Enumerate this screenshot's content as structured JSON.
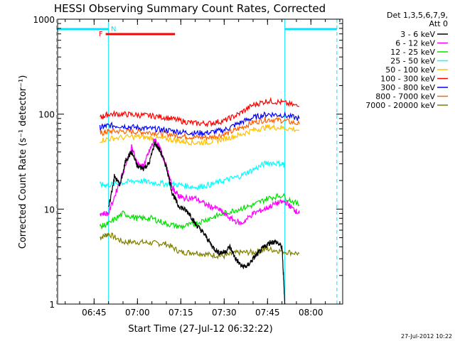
{
  "chart_data": {
    "type": "line",
    "title": "HESSI Observing Summary Count Rates, Corrected",
    "xlabel": "Start Time (27-Jul-12 06:32:22)",
    "ylabel": "Corrected Count Rate (s⁻¹ detector⁻¹)",
    "yscale": "log",
    "ylim": [
      1,
      1000
    ],
    "xlim": [
      "06:32:22",
      "08:11:00"
    ],
    "x_ticks": [
      "06:45",
      "07:00",
      "07:15",
      "07:30",
      "07:45",
      "08:00"
    ],
    "y_ticks": [
      "1",
      "10",
      "100",
      "1000"
    ],
    "legend_header": [
      "Det 1,3,5,6,7,9,",
      "Att 0"
    ],
    "legend_position": "right",
    "timestamp": "27-Jul-2012 10:22",
    "annotations": {
      "flag_labels": [
        "F",
        "N"
      ],
      "flare_bar": {
        "label": "F",
        "start": "06:49",
        "end": "07:13",
        "color": "#ff0000"
      },
      "night_bars": [
        {
          "label": "N",
          "start": "06:32",
          "end": "06:50",
          "color": "#00e5ff"
        },
        {
          "label": "N",
          "start": "07:51",
          "end": "08:09",
          "color": "#00e5ff"
        }
      ],
      "day_boundaries": [
        "06:50",
        "07:51"
      ],
      "night_boundaries": [
        "06:32",
        "08:09"
      ]
    },
    "series": [
      {
        "name": "3 - 6 keV",
        "color": "#000000",
        "x": [
          "06:50",
          "06:52",
          "06:54",
          "06:56",
          "06:58",
          "07:00",
          "07:02",
          "07:04",
          "07:06",
          "07:08",
          "07:10",
          "07:12",
          "07:14",
          "07:16",
          "07:18",
          "07:20",
          "07:22",
          "07:24",
          "07:26",
          "07:28",
          "07:30",
          "07:32",
          "07:34",
          "07:36",
          "07:38",
          "07:40",
          "07:42",
          "07:44",
          "07:46",
          "07:48",
          "07:50",
          "07:51"
        ],
        "values": [
          10,
          22,
          18,
          33,
          40,
          28,
          27,
          30,
          50,
          40,
          28,
          15,
          11,
          10,
          9,
          7,
          6,
          5,
          4,
          3.5,
          3.5,
          4,
          3,
          2.5,
          2.5,
          3,
          3.5,
          4,
          4.5,
          4.5,
          4,
          1
        ]
      },
      {
        "name": "6 - 12 keV",
        "color": "#ff00ff",
        "x": [
          "06:47",
          "06:50",
          "06:54",
          "06:58",
          "07:00",
          "07:02",
          "07:04",
          "07:06",
          "07:08",
          "07:10",
          "07:12",
          "07:14",
          "07:16",
          "07:20",
          "07:24",
          "07:28",
          "07:32",
          "07:36",
          "07:40",
          "07:44",
          "07:48",
          "07:51",
          "07:54",
          "07:56"
        ],
        "values": [
          9,
          9,
          20,
          45,
          30,
          28,
          40,
          55,
          42,
          28,
          17,
          14,
          13,
          13,
          11,
          10,
          8,
          7,
          9,
          10,
          11.5,
          12,
          10,
          9
        ]
      },
      {
        "name": "12 - 25 keV",
        "color": "#00e000",
        "x": [
          "06:47",
          "06:50",
          "06:55",
          "07:00",
          "07:05",
          "07:10",
          "07:15",
          "07:20",
          "07:25",
          "07:30",
          "07:35",
          "07:40",
          "07:45",
          "07:50",
          "07:56"
        ],
        "values": [
          6.5,
          7,
          9,
          8,
          8,
          7,
          6.5,
          7,
          8,
          9,
          10,
          11,
          13,
          14,
          11
        ]
      },
      {
        "name": "25 - 50 keV",
        "color": "#00ffff",
        "x": [
          "06:47",
          "06:50",
          "06:55",
          "07:00",
          "07:05",
          "07:10",
          "07:15",
          "07:20",
          "07:25",
          "07:30",
          "07:35",
          "07:40",
          "07:45",
          "07:50",
          "07:51"
        ],
        "values": [
          18,
          18,
          19,
          20,
          19,
          18.5,
          18,
          17,
          18,
          20,
          22,
          26,
          31,
          30,
          29
        ]
      },
      {
        "name": "50 - 100 keV",
        "color": "#ffc000",
        "x": [
          "06:47",
          "06:52",
          "07:00",
          "07:05",
          "07:10",
          "07:15",
          "07:20",
          "07:25",
          "07:30",
          "07:35",
          "07:40",
          "07:45",
          "07:50",
          "07:56"
        ],
        "values": [
          53,
          56,
          58,
          56,
          55,
          52,
          50,
          51,
          55,
          60,
          68,
          73,
          72,
          68
        ]
      },
      {
        "name": "100 - 300 keV",
        "color": "#ff0000",
        "x": [
          "06:47",
          "06:50",
          "06:55",
          "07:00",
          "07:05",
          "07:10",
          "07:15",
          "07:20",
          "07:25",
          "07:30",
          "07:35",
          "07:40",
          "07:45",
          "07:50",
          "07:56"
        ],
        "values": [
          92,
          100,
          100,
          98,
          96,
          92,
          85,
          80,
          80,
          85,
          100,
          125,
          138,
          133,
          120
        ]
      },
      {
        "name": "300 - 800 keV",
        "color": "#0000ff",
        "x": [
          "06:47",
          "06:50",
          "06:55",
          "07:00",
          "07:05",
          "07:10",
          "07:15",
          "07:20",
          "07:25",
          "07:30",
          "07:35",
          "07:40",
          "07:45",
          "07:50",
          "07:56"
        ],
        "values": [
          72,
          76,
          75,
          72,
          70,
          68,
          65,
          63,
          64,
          68,
          80,
          92,
          100,
          98,
          90
        ]
      },
      {
        "name": "800 - 7000 keV",
        "color": "#ff6000",
        "x": [
          "06:47",
          "06:50",
          "06:55",
          "07:00",
          "07:05",
          "07:10",
          "07:15",
          "07:20",
          "07:25",
          "07:30",
          "07:35",
          "07:40",
          "07:45",
          "07:50",
          "07:56"
        ],
        "values": [
          62,
          66,
          66,
          65,
          64,
          62,
          59,
          57,
          57,
          61,
          70,
          82,
          88,
          86,
          79
        ]
      },
      {
        "name": "7000 - 20000 keV",
        "color": "#808000",
        "x": [
          "06:47",
          "06:50",
          "06:55",
          "07:00",
          "07:05",
          "07:10",
          "07:15",
          "07:20",
          "07:25",
          "07:30",
          "07:35",
          "07:40",
          "07:45",
          "07:50",
          "07:56"
        ],
        "values": [
          5,
          5.5,
          4.5,
          4.5,
          4.4,
          4.3,
          3.5,
          3.5,
          3.3,
          3.2,
          3.5,
          3.5,
          3.8,
          3.6,
          3.4
        ]
      }
    ]
  }
}
